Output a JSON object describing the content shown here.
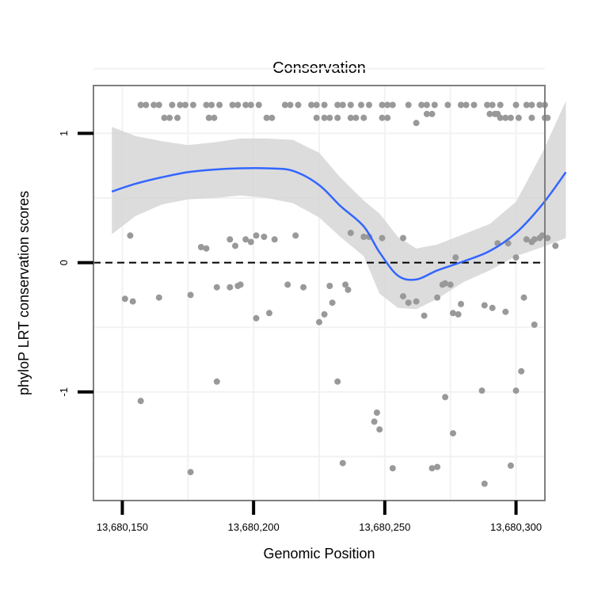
{
  "chart_data": {
    "type": "scatter",
    "title": "Conservation",
    "xlabel": "Genomic Position",
    "ylabel": "phyloP LRT conservation scores",
    "xlim": [
      13680139,
      13680311
    ],
    "ylim": [
      -1.84,
      1.37
    ],
    "x_ticks": [
      13680150,
      13680200,
      13680250,
      13680300
    ],
    "x_tick_labels": [
      "13,680,150",
      "13,680,200",
      "13,680,250",
      "13,680,300"
    ],
    "y_ticks": [
      1,
      0,
      -1
    ],
    "y_tick_labels": [
      "1",
      "0",
      "-1"
    ],
    "y_grid_minor": [
      1.5,
      0.5,
      -0.5,
      -1.5
    ],
    "x_grid_minor": [
      13680175,
      13680225,
      13680275
    ],
    "reference_line": {
      "y": 0,
      "style": "dashed"
    },
    "grid": true,
    "colors": {
      "points": "#999999",
      "smooth": "#3366ff",
      "band": "#d6d6d6",
      "frame": "#7f7f7f",
      "grid": "#f2f2f2"
    },
    "points": [
      [
        13680157,
        1.22
      ],
      [
        13680159,
        1.22
      ],
      [
        13680162,
        1.22
      ],
      [
        13680164,
        1.22
      ],
      [
        13680169,
        1.22
      ],
      [
        13680172,
        1.22
      ],
      [
        13680174,
        1.22
      ],
      [
        13680177,
        1.22
      ],
      [
        13680182,
        1.22
      ],
      [
        13680184,
        1.22
      ],
      [
        13680187,
        1.22
      ],
      [
        13680192,
        1.22
      ],
      [
        13680194,
        1.22
      ],
      [
        13680197,
        1.22
      ],
      [
        13680199,
        1.22
      ],
      [
        13680202,
        1.22
      ],
      [
        13680212,
        1.22
      ],
      [
        13680214,
        1.22
      ],
      [
        13680217,
        1.22
      ],
      [
        13680222,
        1.22
      ],
      [
        13680224,
        1.22
      ],
      [
        13680227,
        1.22
      ],
      [
        13680232,
        1.22
      ],
      [
        13680234,
        1.22
      ],
      [
        13680237,
        1.22
      ],
      [
        13680241,
        1.22
      ],
      [
        13680244,
        1.22
      ],
      [
        13680249,
        1.22
      ],
      [
        13680251,
        1.22
      ],
      [
        13680253,
        1.22
      ],
      [
        13680259,
        1.22
      ],
      [
        13680264,
        1.22
      ],
      [
        13680266,
        1.22
      ],
      [
        13680269,
        1.22
      ],
      [
        13680274,
        1.22
      ],
      [
        13680279,
        1.22
      ],
      [
        13680281,
        1.22
      ],
      [
        13680284,
        1.22
      ],
      [
        13680289,
        1.22
      ],
      [
        13680291,
        1.22
      ],
      [
        13680294,
        1.22
      ],
      [
        13680300,
        1.22
      ],
      [
        13680304,
        1.22
      ],
      [
        13680306,
        1.22
      ],
      [
        13680309,
        1.22
      ],
      [
        13680311,
        1.22
      ],
      [
        13680166,
        1.12
      ],
      [
        13680168,
        1.12
      ],
      [
        13680171,
        1.12
      ],
      [
        13680183,
        1.12
      ],
      [
        13680185,
        1.12
      ],
      [
        13680205,
        1.12
      ],
      [
        13680207,
        1.12
      ],
      [
        13680224,
        1.12
      ],
      [
        13680227,
        1.12
      ],
      [
        13680229,
        1.12
      ],
      [
        13680232,
        1.12
      ],
      [
        13680237,
        1.12
      ],
      [
        13680239,
        1.12
      ],
      [
        13680242,
        1.12
      ],
      [
        13680249,
        1.12
      ],
      [
        13680251,
        1.12
      ],
      [
        13680294,
        1.12
      ],
      [
        13680296,
        1.12
      ],
      [
        13680298,
        1.12
      ],
      [
        13680301,
        1.12
      ],
      [
        13680306,
        1.12
      ],
      [
        13680311,
        1.12
      ],
      [
        13680312,
        1.12
      ],
      [
        13680266,
        1.15
      ],
      [
        13680268,
        1.15
      ],
      [
        13680290,
        1.15
      ],
      [
        13680292,
        1.15
      ],
      [
        13680293,
        1.15
      ],
      [
        13680262,
        1.08
      ],
      [
        13680153,
        0.21
      ],
      [
        13680180,
        0.12
      ],
      [
        13680182,
        0.11
      ],
      [
        13680191,
        0.18
      ],
      [
        13680193,
        0.13
      ],
      [
        13680197,
        0.18
      ],
      [
        13680199,
        0.16
      ],
      [
        13680201,
        0.21
      ],
      [
        13680204,
        0.2
      ],
      [
        13680208,
        0.18
      ],
      [
        13680216,
        0.21
      ],
      [
        13680237,
        0.23
      ],
      [
        13680242,
        0.2
      ],
      [
        13680244,
        0.2
      ],
      [
        13680249,
        0.19
      ],
      [
        13680257,
        0.19
      ],
      [
        13680277,
        0.04
      ],
      [
        13680293,
        0.15
      ],
      [
        13680297,
        0.15
      ],
      [
        13680300,
        0.04
      ],
      [
        13680304,
        0.18
      ],
      [
        13680306,
        0.16
      ],
      [
        13680307,
        0.18
      ],
      [
        13680309,
        0.19
      ],
      [
        13680310,
        0.21
      ],
      [
        13680312,
        0.19
      ],
      [
        13680315,
        0.13
      ],
      [
        13680151,
        -0.28
      ],
      [
        13680154,
        -0.3
      ],
      [
        13680164,
        -0.27
      ],
      [
        13680176,
        -0.25
      ],
      [
        13680186,
        -0.19
      ],
      [
        13680191,
        -0.19
      ],
      [
        13680194,
        -0.18
      ],
      [
        13680195,
        -0.17
      ],
      [
        13680201,
        -0.43
      ],
      [
        13680206,
        -0.39
      ],
      [
        13680213,
        -0.17
      ],
      [
        13680219,
        -0.19
      ],
      [
        13680225,
        -0.46
      ],
      [
        13680227,
        -0.4
      ],
      [
        13680229,
        -0.18
      ],
      [
        13680230,
        -0.31
      ],
      [
        13680235,
        -0.17
      ],
      [
        13680236,
        -0.21
      ],
      [
        13680257,
        -0.26
      ],
      [
        13680259,
        -0.31
      ],
      [
        13680262,
        -0.3
      ],
      [
        13680265,
        -0.41
      ],
      [
        13680270,
        -0.27
      ],
      [
        13680272,
        -0.17
      ],
      [
        13680273,
        -0.16
      ],
      [
        13680275,
        -0.17
      ],
      [
        13680276,
        -0.39
      ],
      [
        13680278,
        -0.4
      ],
      [
        13680279,
        -0.32
      ],
      [
        13680288,
        -0.33
      ],
      [
        13680291,
        -0.35
      ],
      [
        13680296,
        -0.38
      ],
      [
        13680303,
        -0.27
      ],
      [
        13680307,
        -0.48
      ],
      [
        13680157,
        -1.07
      ],
      [
        13680186,
        -0.92
      ],
      [
        13680232,
        -0.92
      ],
      [
        13680273,
        -1.04
      ],
      [
        13680287,
        -0.99
      ],
      [
        13680300,
        -0.99
      ],
      [
        13680302,
        -0.84
      ],
      [
        13680246,
        -1.23
      ],
      [
        13680247,
        -1.16
      ],
      [
        13680248,
        -1.29
      ],
      [
        13680276,
        -1.32
      ],
      [
        13680176,
        -1.62
      ],
      [
        13680234,
        -1.55
      ],
      [
        13680253,
        -1.59
      ],
      [
        13680268,
        -1.59
      ],
      [
        13680270,
        -1.58
      ],
      [
        13680288,
        -1.71
      ],
      [
        13680298,
        -1.57
      ]
    ],
    "smooth": {
      "x": [
        13680146,
        13680155,
        13680165,
        13680175,
        13680185,
        13680195,
        13680205,
        13680215,
        13680225,
        13680233,
        13680242,
        13680248,
        13680255,
        13680262,
        13680270,
        13680280,
        13680290,
        13680300,
        13680310,
        13680319
      ],
      "y": [
        0.55,
        0.61,
        0.66,
        0.7,
        0.72,
        0.73,
        0.73,
        0.71,
        0.6,
        0.44,
        0.28,
        0.08,
        -0.1,
        -0.13,
        -0.06,
        0.01,
        0.09,
        0.23,
        0.45,
        0.7
      ],
      "lower": [
        0.22,
        0.36,
        0.45,
        0.49,
        0.5,
        0.52,
        0.5,
        0.46,
        0.35,
        0.2,
        0.05,
        -0.24,
        -0.35,
        -0.36,
        -0.28,
        -0.15,
        -0.06,
        0.05,
        0.12,
        0.19
      ],
      "upper": [
        1.05,
        0.98,
        0.94,
        0.91,
        0.93,
        0.96,
        0.96,
        0.95,
        0.85,
        0.66,
        0.48,
        0.38,
        0.2,
        0.11,
        0.14,
        0.22,
        0.3,
        0.47,
        0.85,
        1.25
      ]
    }
  }
}
